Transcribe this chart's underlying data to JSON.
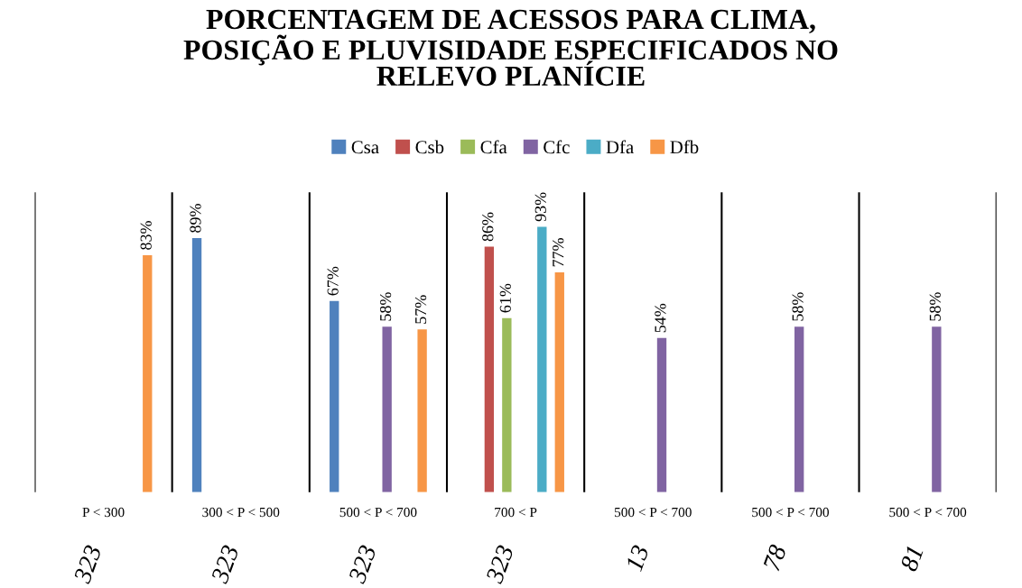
{
  "chart_data": {
    "type": "bar",
    "title": "PORCENTAGEM DE ACESSOS PARA CLIMA,\nPOSIÇÃO E PLUVISIDADE ESPECIFICADOS NO\nRELEVO PLANÍCIE",
    "categories": [
      "P < 300",
      "300 < P < 500",
      "500 < P < 700",
      "700 < P",
      "500 < P < 700",
      "500 < P < 700",
      "500 < P < 700"
    ],
    "annotations": [
      "323",
      "323",
      "323",
      "323",
      "13",
      "78",
      "81"
    ],
    "series": [
      {
        "name": "Csa",
        "color": "#4f81bd",
        "values": [
          null,
          89,
          67,
          null,
          null,
          null,
          null
        ],
        "value_labels": [
          null,
          "89%",
          "67%",
          null,
          null,
          null,
          null
        ]
      },
      {
        "name": "Csb",
        "color": "#c0504d",
        "values": [
          null,
          null,
          null,
          86,
          null,
          null,
          null
        ],
        "value_labels": [
          null,
          null,
          null,
          "86%",
          null,
          null,
          null
        ]
      },
      {
        "name": "Cfa",
        "color": "#9bbb59",
        "values": [
          null,
          null,
          null,
          61,
          null,
          null,
          null
        ],
        "value_labels": [
          null,
          null,
          null,
          "61%",
          null,
          null,
          null
        ]
      },
      {
        "name": "Cfc",
        "color": "#8064a2",
        "values": [
          null,
          null,
          58,
          null,
          54,
          58,
          58
        ],
        "value_labels": [
          null,
          null,
          "58%",
          null,
          "54%",
          "58%",
          "58%"
        ]
      },
      {
        "name": "Dfa",
        "color": "#4bacc6",
        "values": [
          null,
          null,
          null,
          93,
          null,
          null,
          null
        ],
        "value_labels": [
          null,
          null,
          null,
          "93%",
          null,
          null,
          null
        ]
      },
      {
        "name": "Dfb",
        "color": "#f79646",
        "values": [
          83,
          null,
          57,
          77,
          null,
          null,
          null
        ],
        "value_labels": [
          "83%",
          null,
          "57%",
          "77%",
          null,
          null,
          null
        ]
      }
    ],
    "legend": "top",
    "grid": false
  }
}
